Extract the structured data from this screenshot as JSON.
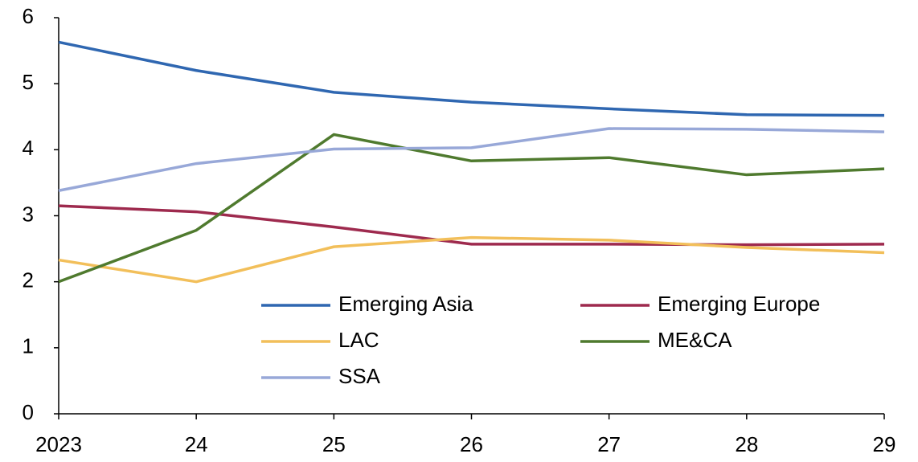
{
  "chart_data": {
    "type": "line",
    "categories": [
      "2023",
      "24",
      "25",
      "26",
      "27",
      "28",
      "29"
    ],
    "series": [
      {
        "name": "Emerging Asia",
        "color": "#2f67b1",
        "values": [
          5.63,
          5.2,
          4.87,
          4.72,
          4.62,
          4.53,
          4.52
        ]
      },
      {
        "name": "Emerging Europe",
        "color": "#9e2a4e",
        "values": [
          3.15,
          3.06,
          2.83,
          2.57,
          2.57,
          2.56,
          2.57
        ]
      },
      {
        "name": "LAC",
        "color": "#f2bf5a",
        "values": [
          2.33,
          2.0,
          2.53,
          2.67,
          2.63,
          2.52,
          2.44
        ]
      },
      {
        "name": "ME&CA",
        "color": "#4f7a2e",
        "values": [
          2.0,
          2.78,
          4.23,
          3.83,
          3.88,
          3.62,
          3.71
        ]
      },
      {
        "name": "SSA",
        "color": "#98a8d8",
        "values": [
          3.38,
          3.79,
          4.01,
          4.03,
          4.32,
          4.31,
          4.27
        ]
      }
    ],
    "ylim": [
      0,
      6
    ],
    "yticks": [
      0,
      1,
      2,
      3,
      4,
      5,
      6
    ],
    "grid": false
  }
}
